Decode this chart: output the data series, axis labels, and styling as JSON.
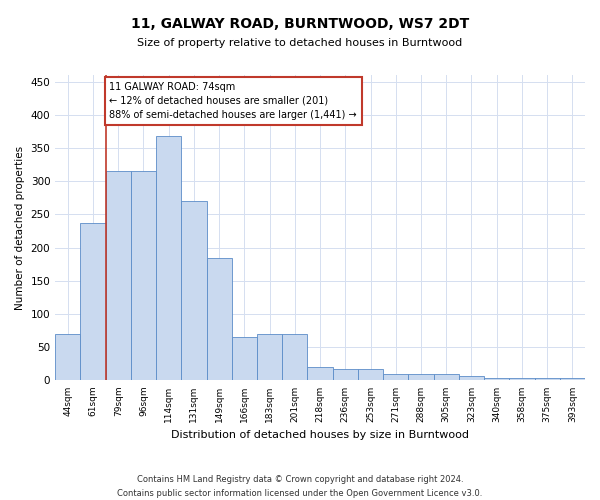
{
  "title": "11, GALWAY ROAD, BURNTWOOD, WS7 2DT",
  "subtitle": "Size of property relative to detached houses in Burntwood",
  "xlabel": "Distribution of detached houses by size in Burntwood",
  "ylabel": "Number of detached properties",
  "categories": [
    "44sqm",
    "61sqm",
    "79sqm",
    "96sqm",
    "114sqm",
    "131sqm",
    "149sqm",
    "166sqm",
    "183sqm",
    "201sqm",
    "218sqm",
    "236sqm",
    "253sqm",
    "271sqm",
    "288sqm",
    "305sqm",
    "323sqm",
    "340sqm",
    "358sqm",
    "375sqm",
    "393sqm"
  ],
  "values": [
    70,
    237,
    315,
    315,
    368,
    270,
    184,
    65,
    70,
    70,
    20,
    17,
    17,
    10,
    10,
    10,
    7,
    3,
    3,
    3,
    3
  ],
  "bar_color": "#c9d9ef",
  "bar_edge_color": "#5b8cc8",
  "vline_x_index": 1.5,
  "vline_color": "#c0392b",
  "annotation_text": "11 GALWAY ROAD: 74sqm\n← 12% of detached houses are smaller (201)\n88% of semi-detached houses are larger (1,441) →",
  "annotation_box_color": "#c0392b",
  "ylim": [
    0,
    460
  ],
  "yticks": [
    0,
    50,
    100,
    150,
    200,
    250,
    300,
    350,
    400,
    450
  ],
  "footer_line1": "Contains HM Land Registry data © Crown copyright and database right 2024.",
  "footer_line2": "Contains public sector information licensed under the Open Government Licence v3.0.",
  "bg_color": "#ffffff",
  "grid_color": "#d5dff0"
}
